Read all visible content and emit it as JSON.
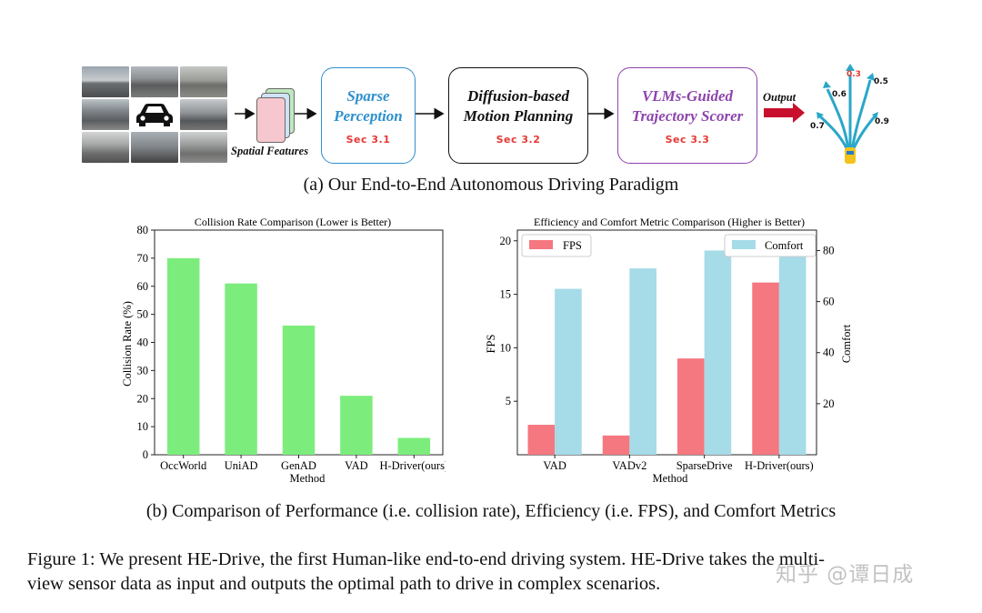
{
  "pipeline": {
    "spatial_features_label": "Spatial Features",
    "stages": [
      {
        "title_line1": "Sparse",
        "title_line2": "Perception",
        "section": "Sec 3.1",
        "color": "#2e8fce"
      },
      {
        "title_line1": "Diffusion-based",
        "title_line2": "Motion Planning",
        "section": "Sec 3.2",
        "color": "#111111"
      },
      {
        "title_line1": "VLMs-Guided",
        "title_line2": "Trajectory Scorer",
        "section": "Sec 3.3",
        "color": "#8e44ad"
      }
    ],
    "output_label": "Output",
    "trajectory_scores": [
      "0.3",
      "0.6",
      "0.5",
      "0.7",
      "0.9"
    ],
    "caption": "(a) Our End-to-End Autonomous Driving Paradigm"
  },
  "chart_data": [
    {
      "type": "bar",
      "title": "Collision Rate Comparison (Lower is Better)",
      "xlabel": "Method",
      "ylabel": "Collision Rate (%)",
      "categories": [
        "OccWorld",
        "UniAD",
        "GenAD",
        "VAD",
        "H-Driver(ours)"
      ],
      "values": [
        70,
        61,
        46,
        21,
        6
      ],
      "ylim": [
        0,
        80
      ],
      "yticks": [
        0,
        10,
        20,
        30,
        40,
        50,
        60,
        70,
        80
      ],
      "color": "#7ced7c"
    },
    {
      "type": "bar",
      "title": "Efficiency and Comfort Metric Comparison (Higher is Better)",
      "xlabel": "Method",
      "categories": [
        "VAD",
        "VADv2",
        "SparseDrive",
        "H-Driver(ours)"
      ],
      "series": [
        {
          "name": "FPS",
          "axis": "left",
          "values": [
            2.8,
            1.8,
            9.0,
            16.1
          ],
          "color": "#f5777f"
        },
        {
          "name": "Comfort",
          "axis": "right",
          "values": [
            65,
            73,
            80,
            86
          ],
          "color": "#a6dbe8"
        }
      ],
      "left_axis": {
        "label": "FPS",
        "ylim": [
          0,
          21
        ],
        "ticks": [
          5,
          10,
          15,
          20
        ]
      },
      "right_axis": {
        "label": "Comfort",
        "ylim": [
          0,
          88
        ],
        "ticks": [
          20,
          40,
          60,
          80
        ]
      },
      "legend": {
        "fps_position": "top-left",
        "comfort_position": "top-right"
      }
    }
  ],
  "caption_b": "(b) Comparison of Performance (i.e. collision rate), Efficiency (i.e. FPS), and Comfort Metrics",
  "figure_caption": {
    "line1": "Figure 1:  We present HE-Drive, the first Human-like end-to-end driving system.  HE-Drive takes the multi-",
    "line2": "view sensor data as input and outputs the optimal path to drive in complex scenarios."
  },
  "watermark": "知乎 @谭日成"
}
